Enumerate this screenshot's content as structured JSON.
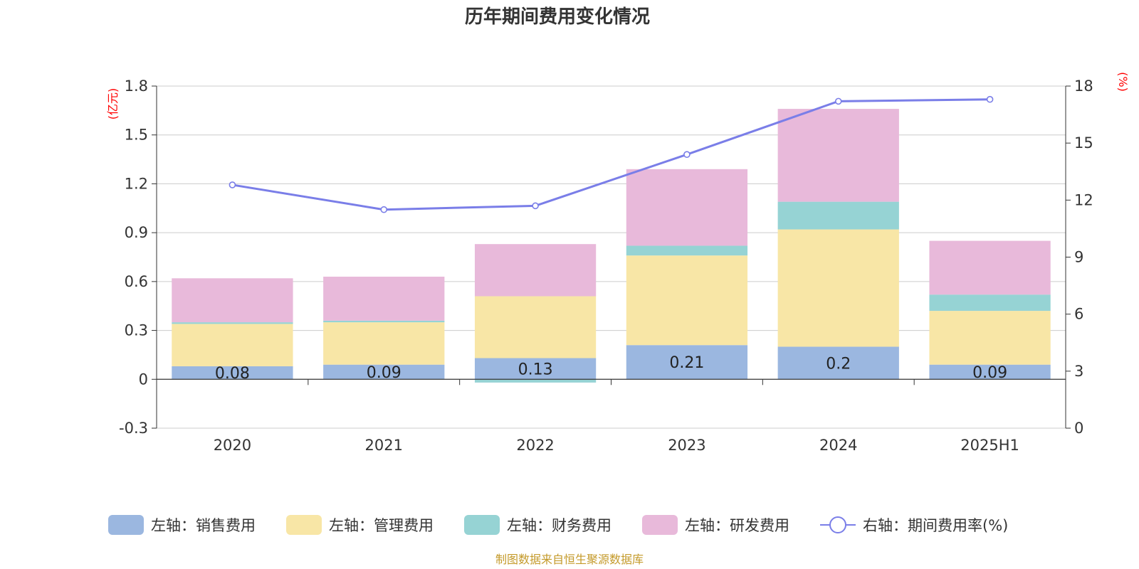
{
  "chart_data": {
    "type": "bar",
    "title": "历年期间费用变化情况",
    "categories": [
      "2020",
      "2021",
      "2022",
      "2023",
      "2024",
      "2025H1"
    ],
    "left_axis": {
      "unit": "(亿元)",
      "ylim": [
        -0.3,
        1.8
      ],
      "ticks": [
        "1.8",
        "1.5",
        "1.2",
        "0.9",
        "0.6",
        "0.3",
        "0",
        "-0.3"
      ],
      "tick_values": [
        1.8,
        1.5,
        1.2,
        0.9,
        0.6,
        0.3,
        0,
        -0.3
      ]
    },
    "right_axis": {
      "unit": "(%)",
      "ylim": [
        0,
        18
      ],
      "ticks": [
        "18",
        "15",
        "12",
        "9",
        "6",
        "3",
        "0"
      ],
      "tick_values": [
        18,
        15,
        12,
        9,
        6,
        3,
        0
      ]
    },
    "series": [
      {
        "name": "左轴：销售费用",
        "kind": "bar",
        "color": "#9bb7e0",
        "values": [
          0.08,
          0.09,
          0.13,
          0.21,
          0.2,
          0.09
        ],
        "value_labels": [
          "0.08",
          "0.09",
          "0.13",
          "0.21",
          "0.2",
          "0.09"
        ]
      },
      {
        "name": "左轴：管理费用",
        "kind": "bar",
        "color": "#f8e6a6",
        "values": [
          0.26,
          0.26,
          0.38,
          0.55,
          0.72,
          0.33
        ]
      },
      {
        "name": "左轴：财务费用",
        "kind": "bar",
        "color": "#96d3d4",
        "values": [
          0.01,
          0.01,
          -0.02,
          0.06,
          0.17,
          0.1
        ]
      },
      {
        "name": "左轴：研发费用",
        "kind": "bar",
        "color": "#e8b9da",
        "values": [
          0.27,
          0.27,
          0.32,
          0.47,
          0.57,
          0.33
        ]
      },
      {
        "name": "右轴：期间费用率(%)",
        "kind": "line",
        "color": "#7a7ee8",
        "values": [
          12.8,
          11.5,
          11.7,
          14.4,
          17.2,
          17.3
        ]
      }
    ],
    "grid": true,
    "legend_position": "bottom"
  },
  "source_note": "制图数据来自恒生聚源数据库"
}
